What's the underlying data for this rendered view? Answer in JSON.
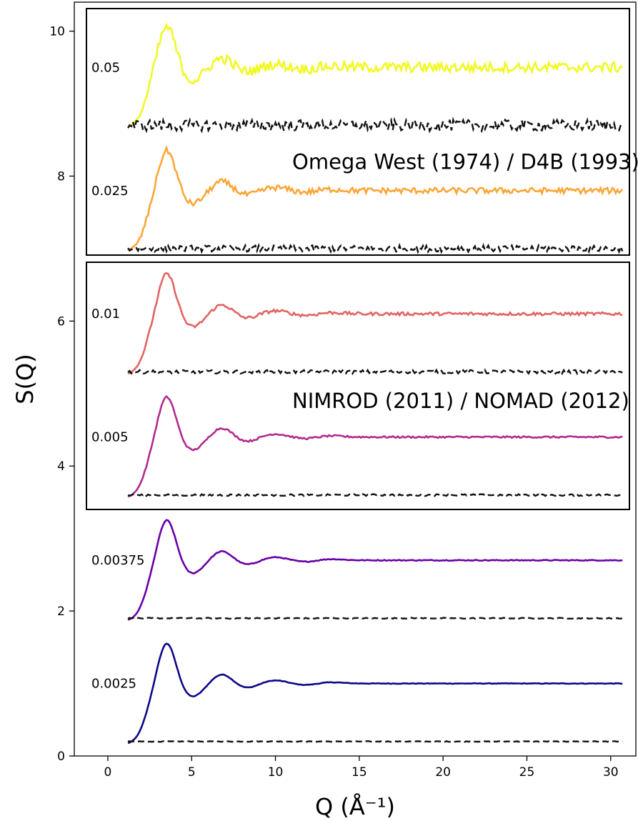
{
  "chart_data": {
    "type": "line",
    "xlabel": "Q (Å⁻¹)",
    "ylabel": "S(Q)",
    "xlim": [
      -2,
      31.5
    ],
    "ylim": [
      0,
      10.4
    ],
    "xticks": [
      0,
      5,
      10,
      15,
      20,
      25,
      30
    ],
    "yticks": [
      0,
      2,
      4,
      6,
      8,
      10
    ],
    "grid": false,
    "legend": "none",
    "q_range": [
      1.2,
      30.7
    ],
    "annotations": [
      {
        "text": "Omega West (1974) / D4B (1993)",
        "q": 11,
        "y": 8.1
      },
      {
        "text": "NIMROD (2011) / NOMAD (2012)",
        "q": 11,
        "y": 4.8
      }
    ],
    "series": [
      {
        "name": "0.0025",
        "color": "#0d0887",
        "baseline": 0.0,
        "plateau": 1.0,
        "start": 0.15,
        "peak": 1.7,
        "noise": 0.004,
        "dashed_level": 0.2
      },
      {
        "name": "0.00375",
        "color": "#6a00a8",
        "baseline": 1.7,
        "plateau": 2.7,
        "start": 1.85,
        "peak": 3.4,
        "noise": 0.006,
        "dashed_level": 1.9
      },
      {
        "name": "0.005",
        "color": "#b12a90",
        "baseline": 3.4,
        "plateau": 4.4,
        "start": 3.55,
        "peak": 5.1,
        "noise": 0.012,
        "dashed_level": 3.6
      },
      {
        "name": "0.01",
        "color": "#e16462",
        "baseline": 5.1,
        "plateau": 6.1,
        "start": 5.25,
        "peak": 6.8,
        "noise": 0.022,
        "dashed_level": 5.3
      },
      {
        "name": "0.025",
        "color": "#fca636",
        "baseline": 6.8,
        "plateau": 7.8,
        "start": 6.95,
        "peak": 8.5,
        "noise": 0.04,
        "dashed_level": 7.0
      },
      {
        "name": "0.05",
        "color": "#f0f921",
        "baseline": 8.5,
        "plateau": 9.5,
        "start": 8.65,
        "peak": 10.25,
        "noise": 0.07,
        "dashed_level": 8.7
      }
    ]
  }
}
